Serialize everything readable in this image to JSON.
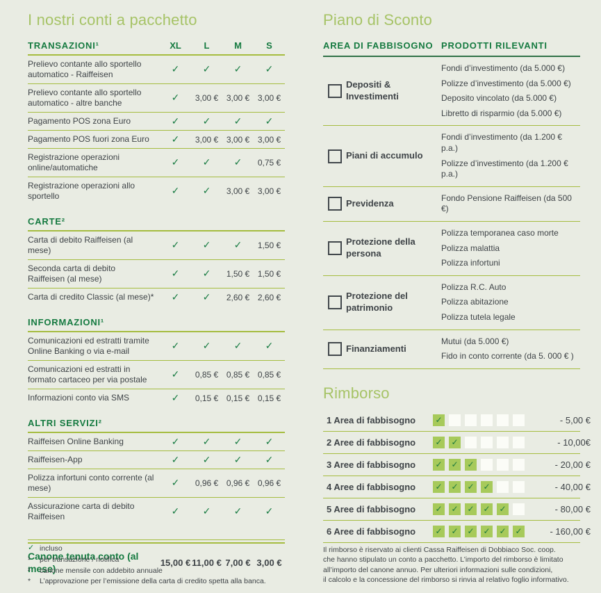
{
  "theme": {
    "background": "#e9ece3",
    "brand_green": "#157a40",
    "light_green": "#a6c366",
    "line_olive": "#a5bc3f",
    "checked_box_fill": "#a7ca5b"
  },
  "left": {
    "title": "I nostri conti a pacchetto",
    "columns": [
      "XL",
      "L",
      "M",
      "S"
    ],
    "sections": [
      {
        "heading": "TRANSAZIONI¹",
        "rows": [
          {
            "label": "Prelievo contante allo sportello automatico - Raiffeisen",
            "values": [
              "check",
              "check",
              "check",
              "check"
            ]
          },
          {
            "label": "Prelievo contante allo sportello automatico - altre banche",
            "values": [
              "check",
              "3,00 €",
              "3,00 €",
              "3,00 €"
            ]
          },
          {
            "label": "Pagamento POS zona Euro",
            "values": [
              "check",
              "check",
              "check",
              "check"
            ]
          },
          {
            "label": "Pagamento POS fuori zona Euro",
            "values": [
              "check",
              "3,00 €",
              "3,00 €",
              "3,00 €"
            ]
          },
          {
            "label": "Registrazione operazioni online/automatiche",
            "values": [
              "check",
              "check",
              "check",
              "0,75 €"
            ]
          },
          {
            "label": "Registrazione operazioni allo sportello",
            "values": [
              "check",
              "check",
              "3,00 €",
              "3,00 €"
            ]
          }
        ]
      },
      {
        "heading": "CARTE²",
        "rows": [
          {
            "label": "Carta di debito Raiffeisen (al mese)",
            "values": [
              "check",
              "check",
              "check",
              "1,50 €"
            ]
          },
          {
            "label": "Seconda carta di debito Raiffeisen (al mese)",
            "values": [
              "check",
              "check",
              "1,50 €",
              "1,50 €"
            ]
          },
          {
            "label": "Carta di credito Classic (al mese)*",
            "values": [
              "check",
              "check",
              "2,60 €",
              "2,60 €"
            ]
          }
        ]
      },
      {
        "heading": "INFORMAZIONI¹",
        "rows": [
          {
            "label": "Comunicazioni ed estratti tramite Online Banking o via e-mail",
            "values": [
              "check",
              "check",
              "check",
              "check"
            ]
          },
          {
            "label": "Comunicazioni ed estratti in formato cartaceo per via postale",
            "values": [
              "check",
              "0,85 €",
              "0,85 €",
              "0,85 €"
            ]
          },
          {
            "label": "Informazioni conto via SMS",
            "values": [
              "check",
              "0,15 €",
              "0,15 €",
              "0,15 €"
            ]
          }
        ]
      },
      {
        "heading": "ALTRI SERVIZI²",
        "rows": [
          {
            "label": "Raiffeisen Online Banking",
            "values": [
              "check",
              "check",
              "check",
              "check"
            ]
          },
          {
            "label": "Raiffeisen-App",
            "values": [
              "check",
              "check",
              "check",
              "check"
            ]
          },
          {
            "label": "Polizza infortuni conto corrente (al mese)",
            "values": [
              "check",
              "0,96 €",
              "0,96 €",
              "0,96 €"
            ]
          },
          {
            "label": "Assicurazione carta di debito Raiffeisen",
            "values": [
              "check",
              "check",
              "check",
              "check"
            ]
          }
        ]
      }
    ],
    "summary": {
      "label": "Canone tenuta conto (al mese)",
      "values": [
        "15,00 €",
        "11,00 €",
        "7,00 €",
        "3,00 €"
      ]
    },
    "footnotes": [
      {
        "marker": "check",
        "text": "incluso"
      },
      {
        "marker": "¹",
        "text": "per transazione / notifica"
      },
      {
        "marker": "²",
        "text": "canone mensile con addebito annuale"
      },
      {
        "marker": "*",
        "text": "L’approvazione per l’emissione della carta di credito spetta alla banca."
      }
    ]
  },
  "right": {
    "discount": {
      "title": "Piano di Sconto",
      "col1_header": "AREA DI FABBISOGNO",
      "col2_header": "PRODOTTI RILEVANTI",
      "rows": [
        {
          "area": "Depositi & Investimenti",
          "products": [
            "Fondi d’investimento (da 5.000 €)",
            "Polizze d’investimento (da 5.000 €)",
            "Deposito vincolato (da 5.000 €)",
            "Libretto di risparmio (da 5.000 €)"
          ]
        },
        {
          "area": "Piani di accumulo",
          "products": [
            "Fondi d’investimento (da 1.200 € p.a.)",
            "Polizze d’investimento (da 1.200  € p.a.)"
          ]
        },
        {
          "area": "Previdenza",
          "products": [
            "Fondo Pensione Raiffeisen (da 500 €)"
          ]
        },
        {
          "area": "Protezione della persona",
          "products": [
            "Polizza temporanea caso morte",
            "Polizza malattia",
            "Polizza infortuni"
          ]
        },
        {
          "area": "Protezione del patrimonio",
          "products": [
            "Polizza R.C. Auto",
            "Polizza abitazione",
            "Polizza tutela legale"
          ]
        },
        {
          "area": "Finanziamenti",
          "products": [
            "Mutui (da 5.000 €)",
            "Fido in conto  corrente (da 5. 000 € )"
          ]
        }
      ]
    },
    "rimborso": {
      "title": "Rimborso",
      "total_boxes": 6,
      "rows": [
        {
          "label": "1 Area di fabbisogno",
          "checked": 1,
          "amount": "- 5,00 €"
        },
        {
          "label": "2 Aree di fabbisogno",
          "checked": 2,
          "amount": "- 10,00€"
        },
        {
          "label": "3 Aree di fabbisogno",
          "checked": 3,
          "amount": "-  20,00 €"
        },
        {
          "label": "4 Aree di fabbisogno",
          "checked": 4,
          "amount": "- 40,00 €"
        },
        {
          "label": "5 Aree di fabbisogno",
          "checked": 5,
          "amount": "- 80,00 €"
        },
        {
          "label": "6 Aree di fabbisogno",
          "checked": 6,
          "amount": "- 160,00 €"
        }
      ]
    },
    "footer_lines": [
      "Il rimborso è riservato ai clienti Cassa Raiffeisen di Dobbiaco Soc. coop.",
      "che hanno stipulato un conto a pacchetto. L’importo del rimborso è limitato",
      "all’importo del canone annuo. Per ulteriori informazioni sulle condizioni,",
      "il calcolo e la concessione del rimborso si rinvia al relativo foglio informativo."
    ]
  }
}
